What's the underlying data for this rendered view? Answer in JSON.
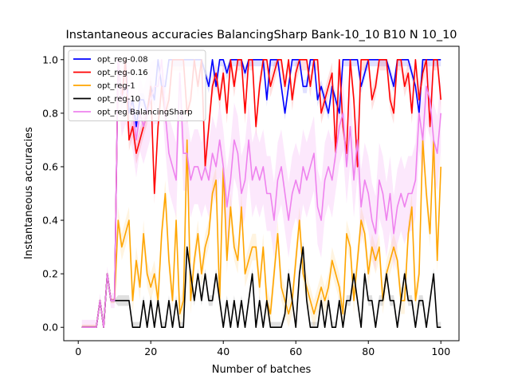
{
  "chart_data": {
    "type": "line",
    "title": "Instantaneous accuracies BalancingSharp Bank-10_10 B10 N 10_10",
    "xlabel": "Number of batches",
    "ylabel": "Instantaneous accuracies",
    "xlim": [
      -4,
      105
    ],
    "ylim": [
      -0.05,
      1.05
    ],
    "xticks": [
      0,
      20,
      40,
      60,
      80,
      100
    ],
    "xtick_labels": [
      "0",
      "20",
      "40",
      "60",
      "80",
      "100"
    ],
    "yticks": [
      0.0,
      0.2,
      0.4,
      0.6,
      0.8,
      1.0
    ],
    "ytick_labels": [
      "0.0",
      "0.2",
      "0.4",
      "0.6",
      "0.8",
      "1.0"
    ],
    "grid": false,
    "legend_position": "top-left",
    "x": [
      1,
      2,
      3,
      4,
      5,
      6,
      7,
      8,
      9,
      10,
      11,
      12,
      13,
      14,
      15,
      16,
      17,
      18,
      19,
      20,
      21,
      22,
      23,
      24,
      25,
      26,
      27,
      28,
      29,
      30,
      31,
      32,
      33,
      34,
      35,
      36,
      37,
      38,
      39,
      40,
      41,
      42,
      43,
      44,
      45,
      46,
      47,
      48,
      49,
      50,
      51,
      52,
      53,
      54,
      55,
      56,
      57,
      58,
      59,
      60,
      61,
      62,
      63,
      64,
      65,
      66,
      67,
      68,
      69,
      70,
      71,
      72,
      73,
      74,
      75,
      76,
      77,
      78,
      79,
      80,
      81,
      82,
      83,
      84,
      85,
      86,
      87,
      88,
      89,
      90,
      91,
      92,
      93,
      94,
      95,
      96,
      97,
      98,
      99,
      100
    ],
    "series": [
      {
        "name": "opt_reg-0.08",
        "color": "#0000ff",
        "values": [
          0,
          0,
          0,
          0,
          0,
          0.1,
          0,
          0.2,
          0.1,
          0.1,
          1,
          0.85,
          1,
          0.8,
          0.85,
          0.75,
          0.85,
          0.85,
          0.8,
          0.9,
          0.85,
          1,
          0.9,
          0.9,
          1,
          1,
          1,
          1,
          1,
          1,
          1,
          1,
          1,
          1,
          0.95,
          0.9,
          1,
          0.9,
          1,
          1,
          0.95,
          1,
          1,
          1,
          1,
          0.95,
          1,
          1,
          1,
          1,
          1,
          0.85,
          1,
          1,
          1,
          0.9,
          0.8,
          0.9,
          1,
          1,
          1,
          0.9,
          0.9,
          1,
          1,
          0.85,
          0.9,
          0.85,
          0.8,
          0.9,
          0.85,
          0.8,
          1,
          1,
          1,
          1,
          1,
          0.9,
          0.95,
          1,
          1,
          1,
          1,
          1,
          1,
          0.95,
          0.9,
          1,
          1,
          1,
          1,
          0.95,
          0.9,
          0.8,
          1,
          1,
          1,
          1,
          1,
          1
        ]
      },
      {
        "name": "opt_reg-0.16",
        "color": "#ff0000",
        "values": [
          0,
          0,
          0,
          0,
          0,
          0.1,
          0,
          0.2,
          0.1,
          0.1,
          1,
          0.85,
          1,
          0.7,
          0.75,
          0.65,
          0.7,
          0.75,
          0.8,
          0.9,
          0.5,
          0.75,
          0.9,
          0.8,
          0.85,
          1,
          1,
          1,
          1,
          0.8,
          0.85,
          1,
          0.9,
          1,
          0.6,
          0.75,
          0.9,
          0.95,
          0.85,
          0.95,
          0.8,
          1,
          0.9,
          1,
          1,
          0.8,
          1,
          1,
          0.75,
          0.9,
          1,
          1,
          0.9,
          0.95,
          1,
          1,
          0.9,
          1,
          0.85,
          0.95,
          1,
          1,
          1,
          0.9,
          1,
          1,
          0.8,
          0.85,
          0.9,
          0.95,
          0.65,
          1,
          0.75,
          0.65,
          1,
          0.85,
          0.6,
          1,
          1,
          1,
          0.85,
          0.9,
          1,
          1,
          1,
          0.85,
          0.8,
          1,
          1,
          0.9,
          0.95,
          0.8,
          1,
          0.85,
          0.95,
          1,
          0.75,
          1,
          1,
          0.85
        ]
      },
      {
        "name": "opt_reg-1",
        "color": "#ffa500",
        "values": [
          0,
          0,
          0,
          0,
          0,
          0.1,
          0,
          0.2,
          0.1,
          0.1,
          0.4,
          0.3,
          0.35,
          0.4,
          0.1,
          0.25,
          0.15,
          0.35,
          0.2,
          0.15,
          0.2,
          0.1,
          0.35,
          0.5,
          0.25,
          0.1,
          0.4,
          0.05,
          0.1,
          0.7,
          0.1,
          0.25,
          0.35,
          0.2,
          0.3,
          0.35,
          0.5,
          0.55,
          0.1,
          0.6,
          0.25,
          0.45,
          0.3,
          0.25,
          0.45,
          0.2,
          0.25,
          0.3,
          0.3,
          0.15,
          0.3,
          0.1,
          0.05,
          0.2,
          0.35,
          0.15,
          0.1,
          0.05,
          0.1,
          0.25,
          0.4,
          0.2,
          0.15,
          0.1,
          0.05,
          0.1,
          0.15,
          0.1,
          0.15,
          0.25,
          0.2,
          0.15,
          0.05,
          0.35,
          0.3,
          0.1,
          0.25,
          0.4,
          0.35,
          0.2,
          0.3,
          0.25,
          0.3,
          0.1,
          0.2,
          0.25,
          0.3,
          0.25,
          0.1,
          0.1,
          0.35,
          0.45,
          0.1,
          0.2,
          0.7,
          0.5,
          0.35,
          0.7,
          0.25,
          0.6
        ]
      },
      {
        "name": "opt_reg-10",
        "color": "#000000",
        "values": [
          0,
          0,
          0,
          0,
          0,
          0.1,
          0,
          0.2,
          0.1,
          0.1,
          0.1,
          0.1,
          0.1,
          0.1,
          0,
          0,
          0,
          0.1,
          0,
          0.1,
          0,
          0.1,
          0,
          0,
          0.1,
          0,
          0.1,
          0,
          0,
          0.3,
          0.2,
          0.1,
          0.2,
          0.1,
          0.2,
          0.1,
          0.1,
          0.2,
          0.1,
          0,
          0.1,
          0,
          0.1,
          0,
          0.1,
          0,
          0.1,
          0.2,
          0,
          0.1,
          0,
          0.1,
          0,
          0,
          0,
          0,
          0.05,
          0.2,
          0.1,
          0,
          0.2,
          0.3,
          0.1,
          0,
          0,
          0,
          0.1,
          0,
          0.1,
          0,
          0,
          0.1,
          0,
          0.1,
          0.1,
          0.2,
          0.1,
          0,
          0.2,
          0.1,
          0.1,
          0,
          0.1,
          0.1,
          0.2,
          0.1,
          0.1,
          0,
          0.1,
          0.2,
          0.1,
          0.1,
          0,
          0.1,
          0.1,
          0,
          0.1,
          0.2,
          0,
          0
        ]
      },
      {
        "name": "opt_reg BalancingSharp",
        "color": "#ee82ee",
        "values": [
          0,
          0,
          0,
          0,
          0,
          0.1,
          0,
          0.2,
          0.1,
          0.1,
          1,
          0.85,
          0.9,
          0.85,
          0.8,
          0.7,
          0.8,
          0.75,
          0.8,
          0.85,
          0.9,
          0.9,
          1,
          0.8,
          0.65,
          0.6,
          0.55,
          0.95,
          0.65,
          0.65,
          0.55,
          0.6,
          0.6,
          0.55,
          0.6,
          0.55,
          0.65,
          0.6,
          0.7,
          0.6,
          0.45,
          0.55,
          0.7,
          0.65,
          0.5,
          0.55,
          0.7,
          0.55,
          0.6,
          0.55,
          0.6,
          0.5,
          0.5,
          0.4,
          0.55,
          0.6,
          0.5,
          0.4,
          0.5,
          0.55,
          0.5,
          0.6,
          0.55,
          0.6,
          0.65,
          0.45,
          0.4,
          0.55,
          0.6,
          0.55,
          0.65,
          0.75,
          0.8,
          0.6,
          0.75,
          0.55,
          0.7,
          0.45,
          0.55,
          0.5,
          0.4,
          0.35,
          0.55,
          0.5,
          0.4,
          0.5,
          0.35,
          0.45,
          0.5,
          0.45,
          0.5,
          0.5,
          0.55,
          0.8,
          0.7,
          0.9,
          0.85,
          0.7,
          0.65,
          0.8
        ]
      }
    ]
  }
}
